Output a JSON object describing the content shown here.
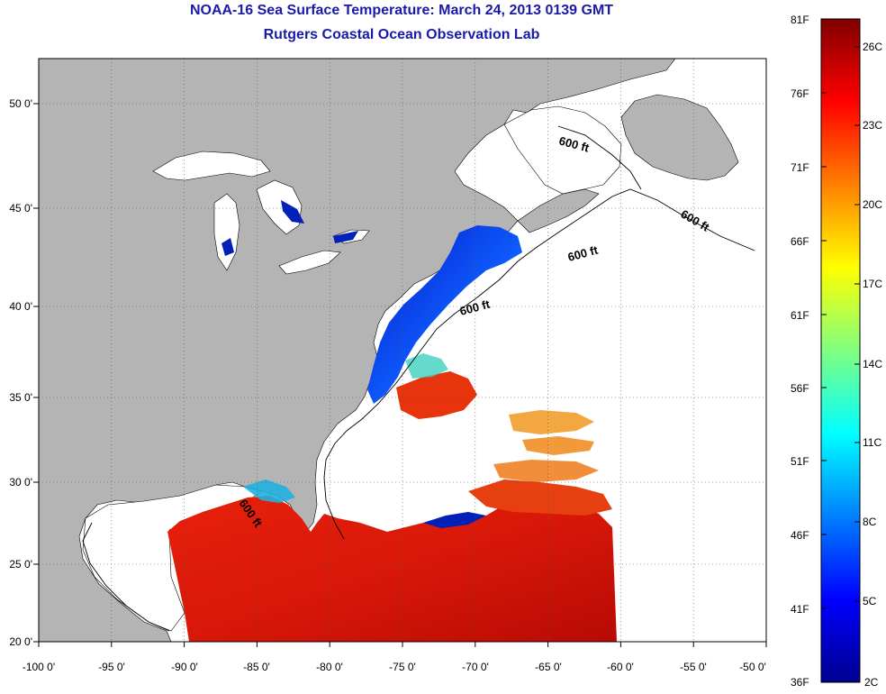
{
  "header": {
    "title": "NOAA-16 Sea Surface Temperature:  March 24, 2013 0139 GMT",
    "subtitle": "Rutgers Coastal Ocean Observation Lab"
  },
  "map": {
    "lon_range": [
      -100,
      -50
    ],
    "lat_range": [
      20,
      52.5
    ],
    "lon_ticks": [
      "-100 0'",
      "-95 0'",
      "-90 0'",
      "-85 0'",
      "-80 0'",
      "-75 0'",
      "-70 0'",
      "-65 0'",
      "-60 0'",
      "-55 0'",
      "-50 0'"
    ],
    "lat_ticks": [
      "50 0'",
      "45 0'",
      "40 0'",
      "35 0'",
      "30 0'",
      "25 0'",
      "20 0'"
    ],
    "grid": "dotted",
    "land_color": "#b4b4b4",
    "no_data_color": "#ffffff",
    "isobath_labels": [
      "600 ft",
      "600 ft",
      "600 ft",
      "600 ft",
      "600 ft"
    ]
  },
  "colorbar": {
    "min_f": 36,
    "max_f": 81,
    "f_labels": [
      "81F",
      "76F",
      "71F",
      "66F",
      "61F",
      "56F",
      "51F",
      "46F",
      "41F",
      "36F"
    ],
    "c_labels": [
      "26C",
      "23C",
      "20C",
      "17C",
      "14C",
      "11C",
      "8C",
      "5C",
      "2C"
    ],
    "colors": [
      "#00008f",
      "#0000ff",
      "#0080ff",
      "#00ffff",
      "#80ff80",
      "#ffff00",
      "#ff8000",
      "#ff0000",
      "#800000"
    ]
  }
}
